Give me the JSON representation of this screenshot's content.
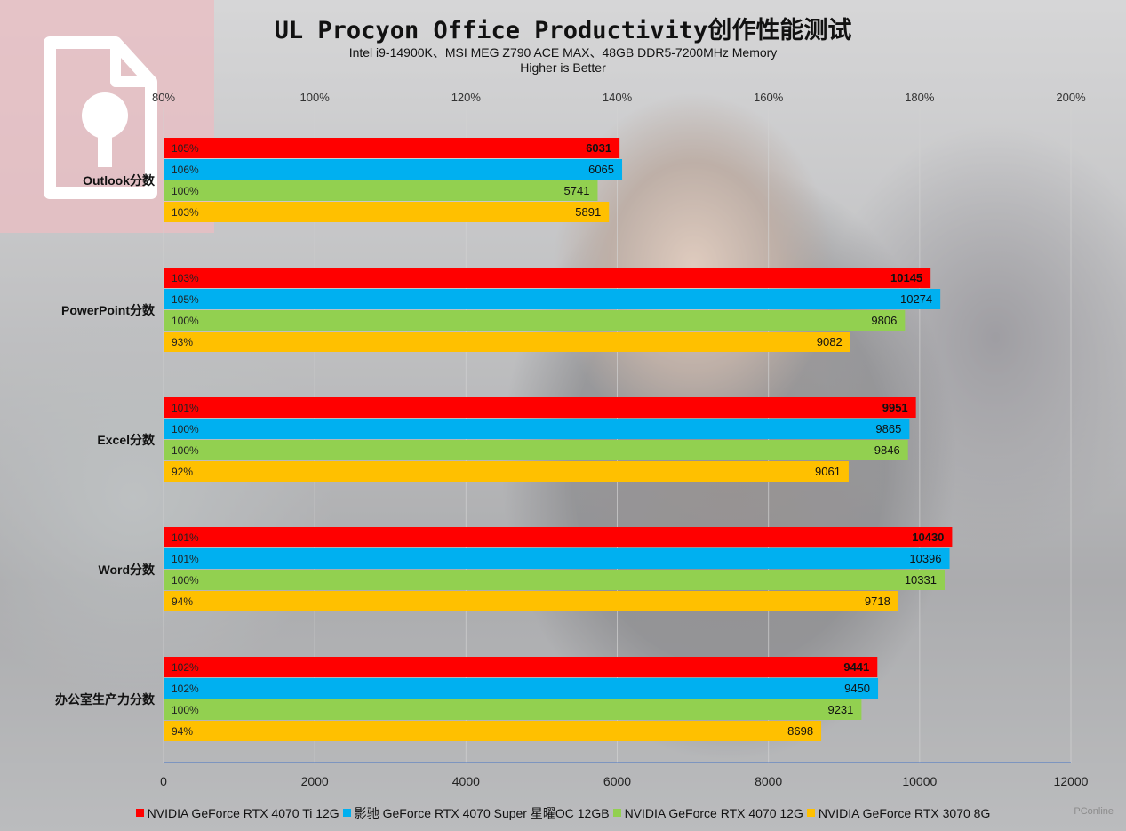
{
  "title": "UL Procyon Office Productivity创作性能测试",
  "subtitle": "Intel i9-14900K、MSI MEG Z790 ACE MAX、48GB DDR5-7200MHz Memory",
  "note": "Higher is Better",
  "watermark": "PConline",
  "chart_data": {
    "type": "bar",
    "orientation": "horizontal",
    "title": "UL Procyon Office Productivity创作性能测试",
    "categories": [
      "Outlook分数",
      "PowerPoint分数",
      "Excel分数",
      "Word分数",
      "办公室生产力分数"
    ],
    "series": [
      {
        "name": "NVIDIA GeForce RTX 4070 Ti 12G",
        "color": "#ff0000",
        "values": [
          6031,
          10145,
          9951,
          10430,
          9441
        ],
        "percent_labels": [
          "105%",
          "103%",
          "101%",
          "101%",
          "102%"
        ],
        "bold_values": true
      },
      {
        "name": "影驰 GeForce RTX 4070 Super 星曜OC 12GB",
        "color": "#00b0f0",
        "values": [
          6065,
          10274,
          9865,
          10396,
          9450
        ],
        "percent_labels": [
          "106%",
          "105%",
          "100%",
          "101%",
          "102%"
        ],
        "bold_values": false
      },
      {
        "name": "NVIDIA GeForce RTX 4070 12G",
        "color": "#92d050",
        "values": [
          5741,
          9806,
          9846,
          10331,
          9231
        ],
        "percent_labels": [
          "100%",
          "100%",
          "100%",
          "100%",
          "100%"
        ],
        "bold_values": false
      },
      {
        "name": "NVIDIA GeForce RTX 3070 8G",
        "color": "#ffc000",
        "values": [
          5891,
          9082,
          9061,
          9718,
          8698
        ],
        "percent_labels": [
          "103%",
          "93%",
          "92%",
          "94%",
          "94%"
        ],
        "bold_values": false
      }
    ],
    "x_axis_bottom": {
      "range": [
        0,
        12000
      ],
      "ticks": [
        "0",
        "2000",
        "4000",
        "6000",
        "8000",
        "10000",
        "12000"
      ]
    },
    "x_axis_top": {
      "range": [
        0.8,
        2.0
      ],
      "ticks": [
        "80%",
        "100%",
        "120%",
        "140%",
        "160%",
        "180%",
        "200%"
      ]
    },
    "grid": true,
    "legend_position": "bottom"
  }
}
